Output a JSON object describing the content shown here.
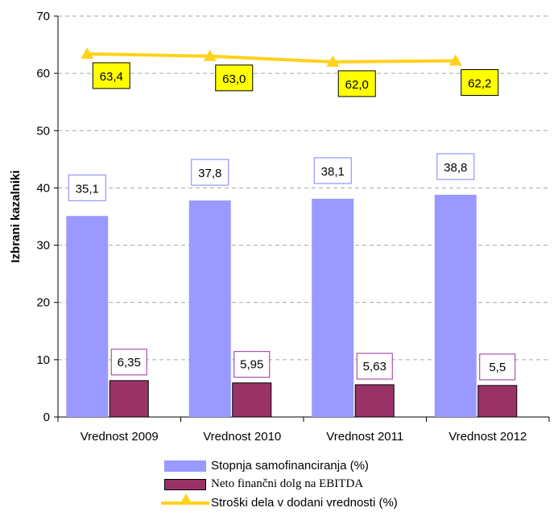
{
  "chart_data": {
    "type": "bar",
    "ylabel": "Izbrani kazalniki",
    "ylim": [
      0,
      70
    ],
    "yticks": [
      "0",
      "10",
      "20",
      "30",
      "40",
      "50",
      "60",
      "70"
    ],
    "grid": true,
    "legend_position": "bottom",
    "categories": [
      "Vrednost 2009",
      "Vrednost 2010",
      "Vrednost 2011",
      "Vrednost 2012"
    ],
    "series": [
      {
        "name": "Stopnja samofinanciranja (%)",
        "type": "bar",
        "color": "#9999ff",
        "values": [
          35.1,
          37.8,
          38.1,
          38.8
        ],
        "labels": [
          "35,1",
          "37,8",
          "38,1",
          "38,8"
        ]
      },
      {
        "name": "Neto finančni dolg na EBITDA",
        "type": "bar",
        "color": "#993366",
        "values": [
          6.35,
          5.95,
          5.63,
          5.5
        ],
        "labels": [
          "6,35",
          "5,95",
          "5,63",
          "5,5"
        ]
      },
      {
        "name": "Stroški dela v dodani vrednosti (%)",
        "type": "line",
        "color": "#ffd21a",
        "values": [
          63.4,
          63.0,
          62.0,
          62.2
        ],
        "labels": [
          "63,4",
          "63,0",
          "62,0",
          "62,2"
        ]
      }
    ]
  }
}
